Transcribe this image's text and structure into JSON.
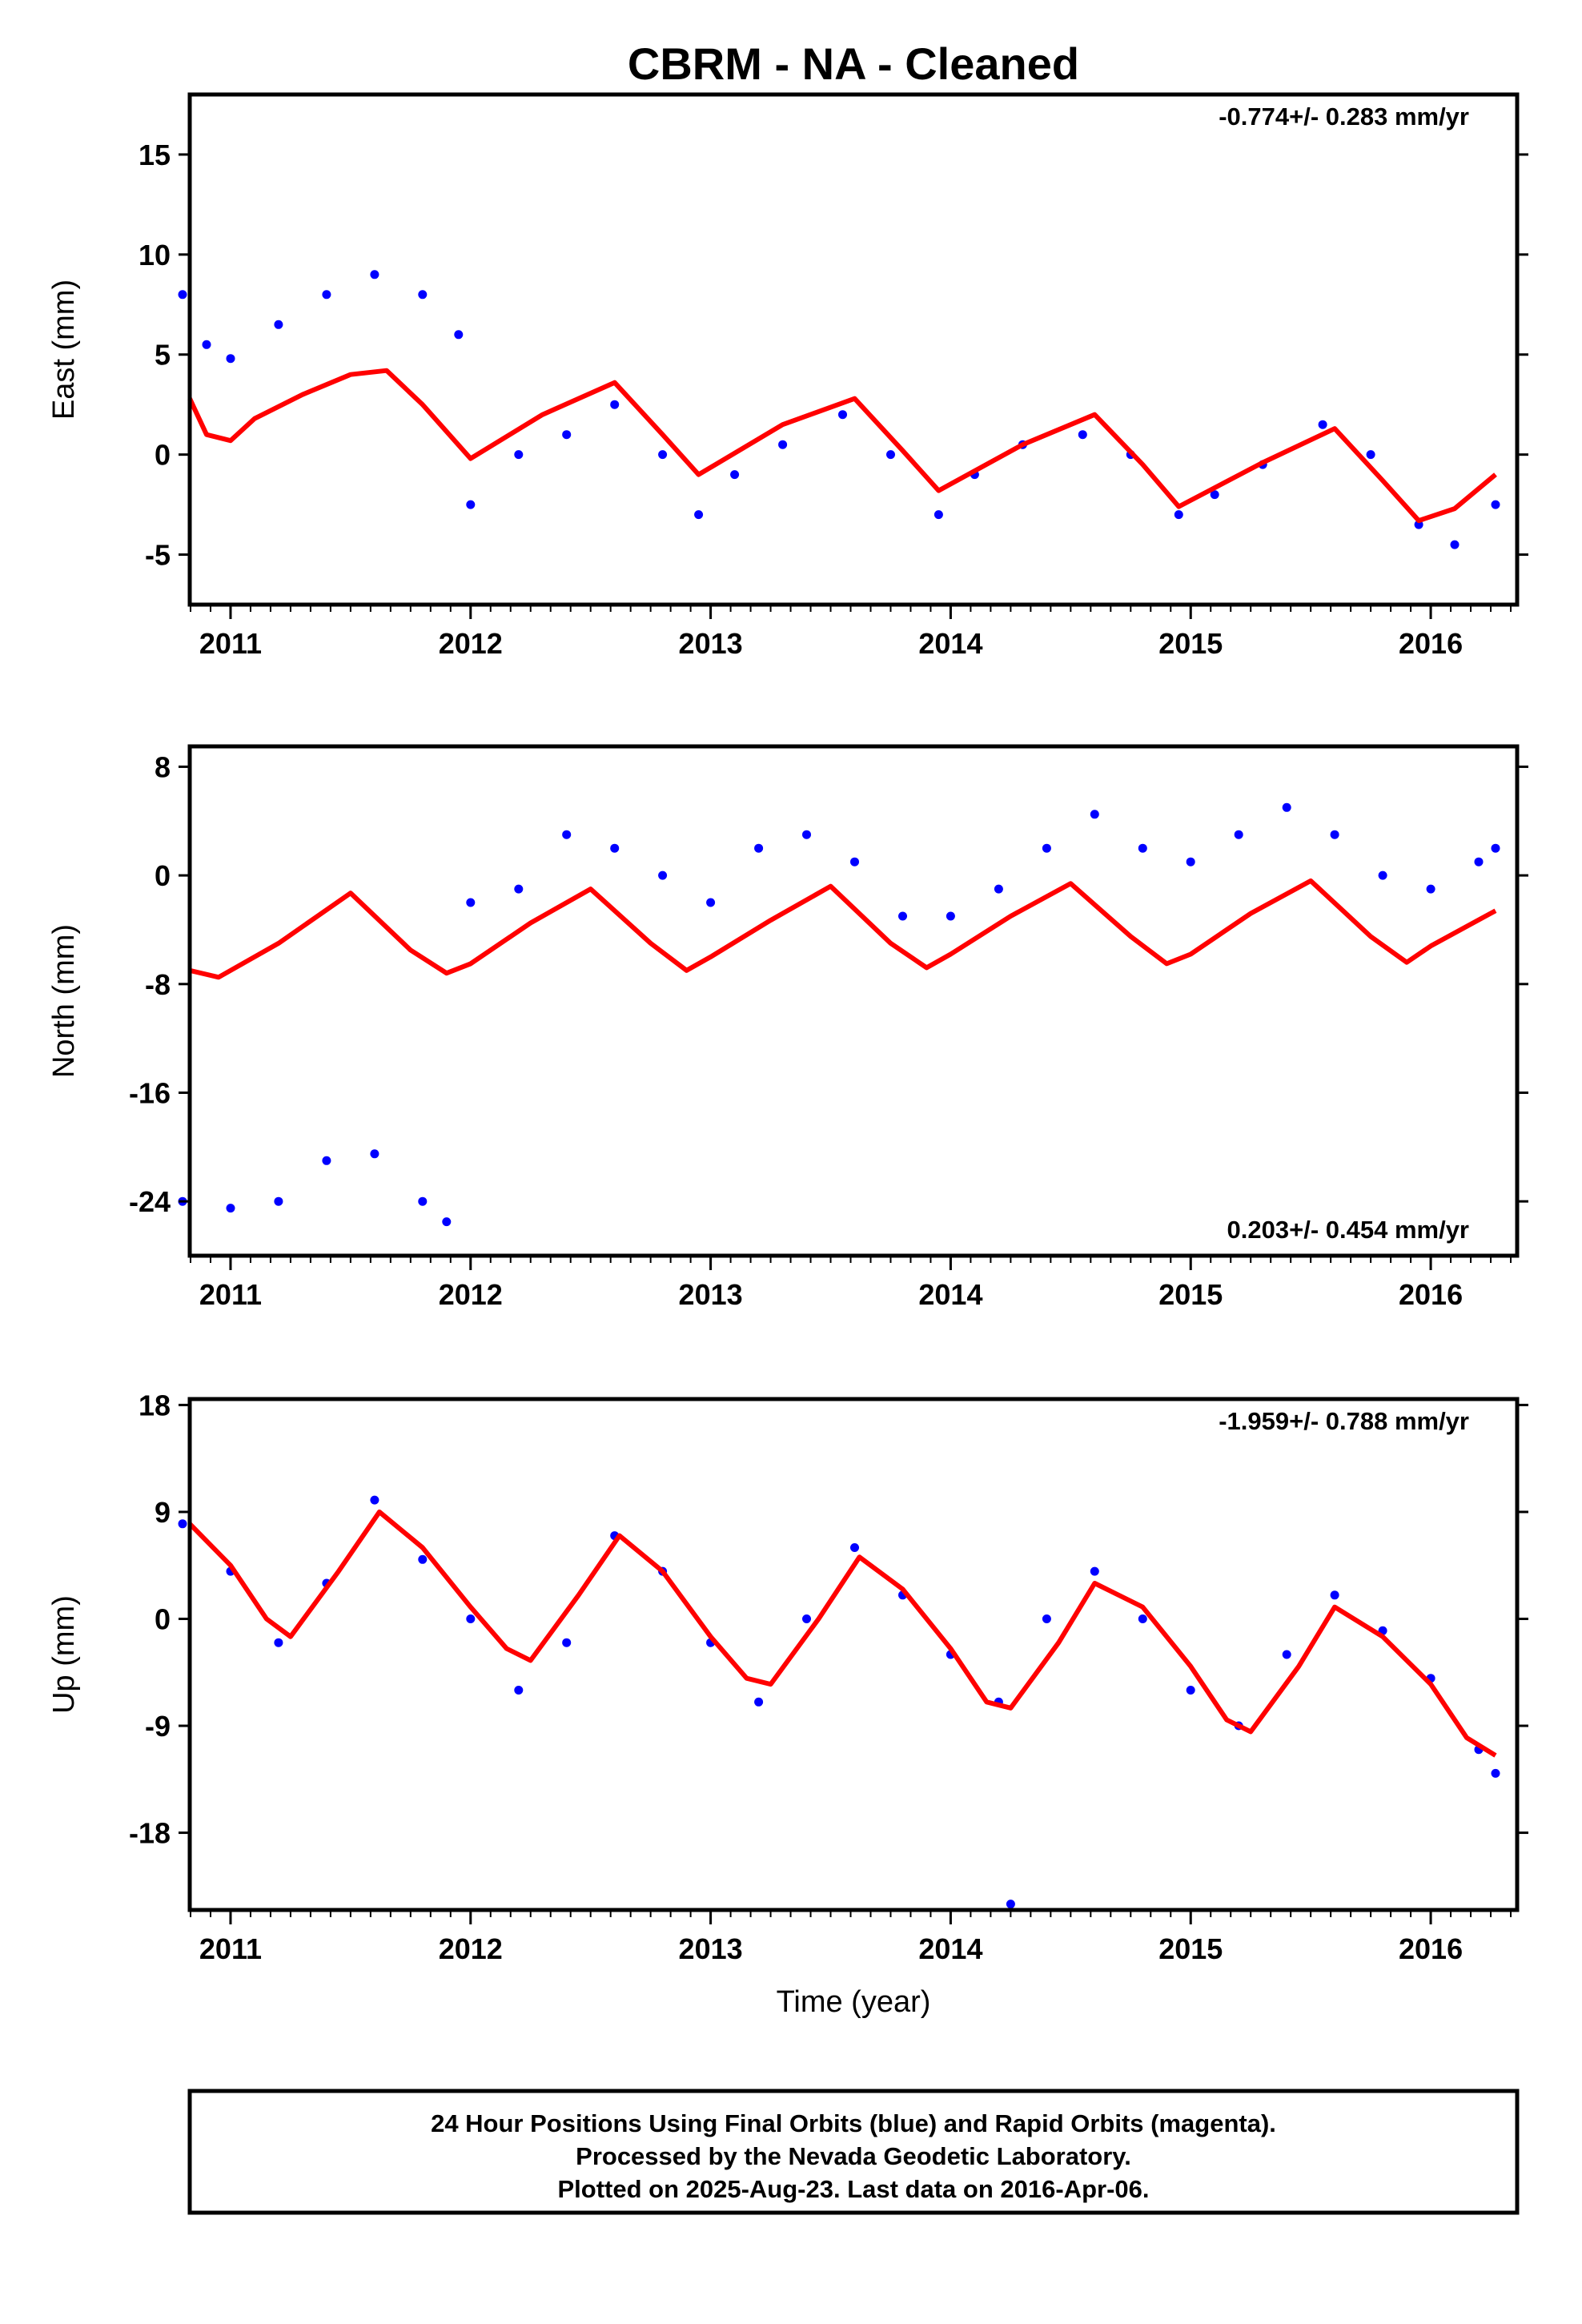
{
  "title": "CBRM  - NA - Cleaned",
  "xlabel": "Time (year)",
  "x_ticks": [
    "2011",
    "2012",
    "2013",
    "2014",
    "2015",
    "2016"
  ],
  "footer": {
    "line1": "24 Hour Positions Using Final Orbits (blue) and Rapid Orbits (magenta).",
    "line2": "Processed by the Nevada Geodetic Laboratory.",
    "line3": "Plotted on 2025-Aug-23. Last data on 2016-Apr-06."
  },
  "colors": {
    "data": "#0000ff",
    "model": "#ff0000",
    "frame": "#000000"
  },
  "chart_data": [
    {
      "type": "scatter",
      "ylabel": "East (mm)",
      "rate": "-0.774+/- 0.283 mm/yr",
      "rate_position": "top-right",
      "xlim": [
        2010.83,
        2016.36
      ],
      "ylim": [
        -7.5,
        18
      ],
      "y_ticks": [
        "15",
        "10",
        "5",
        "0",
        "-5"
      ],
      "series": [
        {
          "kind": "points",
          "x": [
            2010.8,
            2010.9,
            2011.0,
            2011.2,
            2011.4,
            2011.6,
            2011.8,
            2011.95,
            2012.0,
            2012.2,
            2012.4,
            2012.6,
            2012.8,
            2012.95,
            2013.1,
            2013.3,
            2013.55,
            2013.75,
            2013.95,
            2014.1,
            2014.3,
            2014.55,
            2014.75,
            2014.95,
            2015.1,
            2015.3,
            2015.55,
            2015.75,
            2015.95,
            2016.1,
            2016.27
          ],
          "y": [
            8,
            5.5,
            4.8,
            6.5,
            8,
            9,
            8,
            6,
            -2.5,
            0,
            1,
            2.5,
            0,
            -3,
            -1,
            0.5,
            2,
            0,
            -3,
            -1,
            0.5,
            1,
            0,
            -3,
            -2,
            -0.5,
            1.5,
            0,
            -3.5,
            -4.5,
            -2.5
          ]
        },
        {
          "kind": "line",
          "x": [
            2010.83,
            2010.9,
            2011.0,
            2011.1,
            2011.3,
            2011.5,
            2011.65,
            2011.8,
            2012.0,
            2012.3,
            2012.6,
            2012.8,
            2012.95,
            2013.3,
            2013.6,
            2013.8,
            2013.95,
            2014.3,
            2014.6,
            2014.8,
            2014.95,
            2015.3,
            2015.6,
            2015.8,
            2015.95,
            2016.1,
            2016.27
          ],
          "y": [
            2.8,
            1.0,
            0.7,
            1.8,
            3.0,
            4.0,
            4.2,
            2.5,
            -0.2,
            2.0,
            3.6,
            1.0,
            -1.0,
            1.5,
            2.8,
            0.2,
            -1.8,
            0.5,
            2.0,
            -0.5,
            -2.6,
            -0.4,
            1.3,
            -1.3,
            -3.3,
            -2.7,
            -1.0
          ]
        }
      ]
    },
    {
      "type": "scatter",
      "ylabel": "North (mm)",
      "rate": "0.203+/- 0.454 mm/yr",
      "rate_position": "bottom-right",
      "xlim": [
        2010.83,
        2016.36
      ],
      "ylim": [
        -28,
        9.5
      ],
      "y_ticks": [
        "8",
        "0",
        "-8",
        "-16",
        "-24"
      ],
      "series": [
        {
          "kind": "points",
          "x": [
            2010.8,
            2011.0,
            2011.2,
            2011.4,
            2011.6,
            2011.8,
            2011.9,
            2012.0,
            2012.2,
            2012.4,
            2012.6,
            2012.8,
            2013.0,
            2013.2,
            2013.4,
            2013.6,
            2013.8,
            2014.0,
            2014.2,
            2014.4,
            2014.6,
            2014.8,
            2015.0,
            2015.2,
            2015.4,
            2015.6,
            2015.8,
            2016.0,
            2016.2,
            2016.27
          ],
          "y": [
            -24,
            -24.5,
            -24,
            -21,
            -20.5,
            -24,
            -25.5,
            -2,
            -1,
            3,
            2,
            0,
            -2,
            2,
            3,
            1,
            -3,
            -3,
            -1,
            2,
            4.5,
            2,
            1,
            3,
            5,
            3,
            0,
            -1,
            1,
            2
          ]
        },
        {
          "kind": "line",
          "x": [
            2010.83,
            2010.95,
            2011.2,
            2011.5,
            2011.75,
            2011.9,
            2012.0,
            2012.25,
            2012.5,
            2012.75,
            2012.9,
            2013.0,
            2013.25,
            2013.5,
            2013.75,
            2013.9,
            2014.0,
            2014.25,
            2014.5,
            2014.75,
            2014.9,
            2015.0,
            2015.25,
            2015.5,
            2015.75,
            2015.9,
            2016.0,
            2016.27
          ],
          "y": [
            -7.0,
            -7.5,
            -5.0,
            -1.3,
            -5.5,
            -7.2,
            -6.5,
            -3.5,
            -1.0,
            -5.0,
            -7.0,
            -6.0,
            -3.3,
            -0.8,
            -5.0,
            -6.8,
            -5.8,
            -3.0,
            -0.6,
            -4.5,
            -6.5,
            -5.8,
            -2.8,
            -0.4,
            -4.5,
            -6.4,
            -5.2,
            -2.6
          ]
        }
      ]
    },
    {
      "type": "scatter",
      "ylabel": "Up (mm)",
      "rate": "-1.959+/- 0.788 mm/yr",
      "rate_position": "top-right",
      "xlim": [
        2010.83,
        2016.36
      ],
      "ylim": [
        -24.5,
        18.5
      ],
      "y_ticks": [
        "18",
        "9",
        "0",
        "-9",
        "-18"
      ],
      "series": [
        {
          "kind": "points",
          "x": [
            2010.8,
            2011.0,
            2011.2,
            2011.4,
            2011.6,
            2011.8,
            2012.0,
            2012.2,
            2012.4,
            2012.6,
            2012.8,
            2013.0,
            2013.2,
            2013.4,
            2013.6,
            2013.8,
            2014.0,
            2014.2,
            2014.25,
            2014.4,
            2014.6,
            2014.8,
            2015.0,
            2015.2,
            2015.4,
            2015.6,
            2015.8,
            2016.0,
            2016.2,
            2016.27
          ],
          "y": [
            8,
            4,
            -2,
            3,
            10,
            5,
            0,
            -6,
            -2,
            7,
            4,
            -2,
            -7,
            0,
            6,
            2,
            -3,
            -7,
            -24,
            0,
            4,
            0,
            -6,
            -9,
            -3,
            2,
            -1,
            -5,
            -11,
            -13
          ]
        },
        {
          "kind": "line",
          "x": [
            2010.83,
            2011.0,
            2011.15,
            2011.25,
            2011.45,
            2011.62,
            2011.8,
            2012.0,
            2012.15,
            2012.25,
            2012.45,
            2012.62,
            2012.8,
            2013.0,
            2013.15,
            2013.25,
            2013.45,
            2013.62,
            2013.8,
            2014.0,
            2014.15,
            2014.25,
            2014.45,
            2014.6,
            2014.8,
            2015.0,
            2015.15,
            2015.25,
            2015.45,
            2015.6,
            2015.8,
            2016.0,
            2016.15,
            2016.27
          ],
          "y": [
            8.0,
            4.5,
            0.0,
            -1.5,
            4.0,
            9.0,
            6.0,
            1.0,
            -2.5,
            -3.5,
            2.0,
            7.0,
            4.0,
            -1.5,
            -5.0,
            -5.5,
            0.0,
            5.2,
            2.5,
            -2.5,
            -7.0,
            -7.5,
            -2.0,
            3.0,
            1.0,
            -4.0,
            -8.5,
            -9.5,
            -4.0,
            1.0,
            -1.5,
            -5.5,
            -10.0,
            -11.5
          ]
        }
      ]
    }
  ]
}
